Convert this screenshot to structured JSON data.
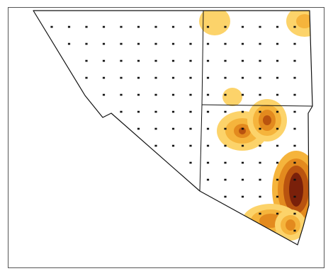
{
  "map": {
    "description_type": "field-sampling-density-map",
    "colors": {
      "frame": "#555555",
      "boundary": "#111111",
      "sample_point": "#111111",
      "density_scale": [
        "#fcd36a",
        "#f5b43c",
        "#e38a1e",
        "#b9530f",
        "#7a200a"
      ]
    },
    "legend": null
  }
}
